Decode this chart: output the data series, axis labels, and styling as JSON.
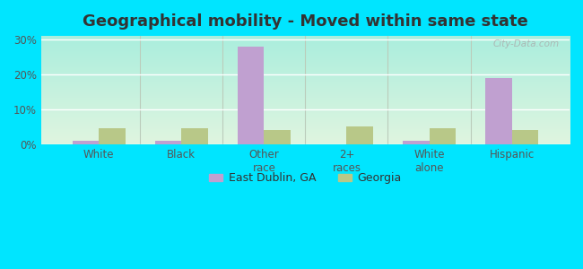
{
  "title": "Geographical mobility - Moved within same state",
  "categories": [
    "White",
    "Black",
    "Other\nrace",
    "2+\nraces",
    "White\nalone",
    "Hispanic"
  ],
  "east_dublin": [
    1.0,
    1.0,
    28.0,
    0.0,
    1.0,
    19.0
  ],
  "georgia": [
    4.5,
    4.5,
    4.0,
    5.0,
    4.5,
    4.0
  ],
  "bar_color_ed": "#c0a0d0",
  "bar_color_ga": "#b8c888",
  "background_color_fig": "#00e5ff",
  "plot_bg_top": "#b8ede0",
  "plot_bg_bottom": "#e8f5e8",
  "yticks": [
    0,
    10,
    20,
    30
  ],
  "ylim": [
    0,
    31
  ],
  "legend_ed": "East Dublin, GA",
  "legend_ga": "Georgia",
  "title_fontsize": 13,
  "bar_width": 0.32
}
